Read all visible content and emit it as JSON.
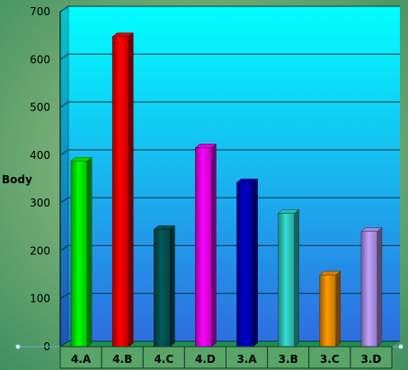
{
  "chart_data": {
    "type": "bar",
    "title": "",
    "xlabel": "",
    "ylabel": "Body",
    "categories": [
      "4.A",
      "4.B",
      "4.C",
      "4.D",
      "3.A",
      "3.B",
      "3.C",
      "3.D"
    ],
    "values": [
      388,
      648,
      245,
      416,
      343,
      279,
      150,
      241
    ],
    "yticks": [
      "0",
      "100",
      "200",
      "300",
      "400",
      "500",
      "600",
      "700"
    ],
    "ylim": [
      0,
      700
    ],
    "grid": true,
    "legend": "none",
    "style_3d": true,
    "bar_colors": [
      "#00FF00",
      "#FF0000",
      "#005A5A",
      "#FF00FF",
      "#0000CC",
      "#33DDD0",
      "#FF9900",
      "#C0A0FF"
    ],
    "background": {
      "outer": "#4F9F66",
      "plot_top": "#00FFFF",
      "plot_bottom": "#2F6DE0",
      "floor": "#1E8F50"
    }
  }
}
